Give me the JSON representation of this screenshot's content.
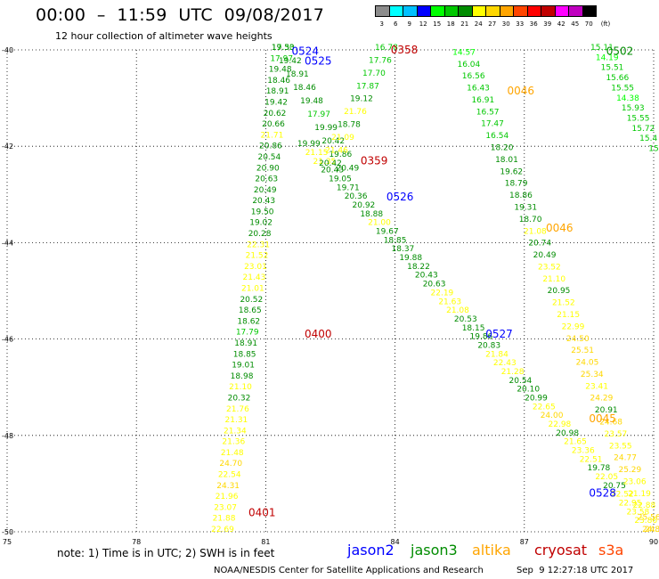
{
  "title": "00:00  –  11:59  UTC  09/08/2017",
  "subtitle": "12 hour collection of altimeter wave heights",
  "scale": {
    "unit": "(ft)",
    "bins": [
      {
        "label": "3",
        "color": "#8c8c8c"
      },
      {
        "label": "6",
        "color": "#00ffff"
      },
      {
        "label": "9",
        "color": "#00c0ff"
      },
      {
        "label": "12",
        "color": "#0000ff"
      },
      {
        "label": "15",
        "color": "#00ff00"
      },
      {
        "label": "18",
        "color": "#00c800"
      },
      {
        "label": "21",
        "color": "#008c00"
      },
      {
        "label": "24",
        "color": "#ffff00"
      },
      {
        "label": "27",
        "color": "#ffd700"
      },
      {
        "label": "30",
        "color": "#ffa500"
      },
      {
        "label": "33",
        "color": "#ff4500"
      },
      {
        "label": "36",
        "color": "#ff0000"
      },
      {
        "label": "39",
        "color": "#c00000"
      },
      {
        "label": "42",
        "color": "#ff00ff"
      },
      {
        "label": "45",
        "color": "#c000c0"
      },
      {
        "label": "70",
        "color": "#000000"
      }
    ]
  },
  "axes": {
    "x_ticks": [
      "75",
      "78",
      "81",
      "84",
      "87",
      "90"
    ],
    "y_ticks": [
      "-40",
      "-42",
      "-44",
      "-46",
      "-48",
      "-50"
    ]
  },
  "note": "note: 1) Time is in UTC; 2) SWH is in feet",
  "satellites": [
    {
      "name": "jason2",
      "color": "#0000ff"
    },
    {
      "name": "jason3",
      "color": "#008c00"
    },
    {
      "name": "altika",
      "color": "#ffa500"
    },
    {
      "name": "cryosat",
      "color": "#c00000"
    },
    {
      "name": "s3a",
      "color": "#ff4500"
    }
  ],
  "footer": "NOAA/NESDIS Center for Satellite Applications and Research",
  "timestamp": "Sep  9 12:27:18 UTC 2017",
  "passes": [
    {
      "label": "0524",
      "sat": "jason2",
      "lon": 81.6,
      "lat": -40.03
    },
    {
      "label": "0525",
      "sat": "jason2",
      "lon": 81.9,
      "lat": -40.23
    },
    {
      "label": "0358",
      "sat": "cryosat",
      "lon": 83.9,
      "lat": -40.0
    },
    {
      "label": "0046",
      "sat": "altika",
      "lon": 86.6,
      "lat": -40.85
    },
    {
      "label": "0502",
      "sat": "jason3",
      "lon": 88.9,
      "lat": -40.03
    },
    {
      "label": "0359",
      "sat": "cryosat",
      "lon": 83.2,
      "lat": -42.3
    },
    {
      "label": "0526",
      "sat": "jason2",
      "lon": 83.8,
      "lat": -43.05
    },
    {
      "label": "0046",
      "sat": "altika",
      "lon": 87.5,
      "lat": -43.7
    },
    {
      "label": "0400",
      "sat": "cryosat",
      "lon": 81.9,
      "lat": -45.9
    },
    {
      "label": "0527",
      "sat": "jason2",
      "lon": 86.1,
      "lat": -45.9
    },
    {
      "label": "0045",
      "sat": "altika",
      "lon": 88.5,
      "lat": -47.65
    },
    {
      "label": "0528",
      "sat": "jason2",
      "lon": 88.5,
      "lat": -49.2
    },
    {
      "label": "0401",
      "sat": "cryosat",
      "lon": 80.6,
      "lat": -49.6
    }
  ],
  "tracks": [
    {
      "name": "jason3-asc-west",
      "start": [
        80.0,
        -50.0
      ],
      "end": [
        81.4,
        -40.0
      ],
      "values": [
        "22.69",
        "21.88",
        "23.07",
        "21.96",
        "24.31",
        "22.54",
        "24.70",
        "21.48",
        "21.36",
        "21.34",
        "21.31",
        "21.76",
        "20.32",
        "21.10",
        "18.98",
        "19.01",
        "18.85",
        "18.91",
        "17.79",
        "18.62",
        "18.65",
        "20.52",
        "21.01",
        "21.43",
        "23.01",
        "21.52",
        "22.31",
        "20.28",
        "19.02",
        "19.50",
        "20.43",
        "20.49",
        "20.63",
        "20.90",
        "20.54",
        "20.86",
        "21.71",
        "20.66",
        "20.62",
        "19.42",
        "18.91",
        "18.46",
        "19.48",
        "17.97",
        "17.30"
      ]
    },
    {
      "name": "jason3-asc-east",
      "start": [
        81.4,
        -40.0
      ],
      "end": [
        82.9,
        -42.5
      ],
      "values": [
        "19.53",
        "19.42",
        "18.91",
        "18.46",
        "19.48",
        "17.97",
        "19.99",
        "20.42",
        "19.86",
        "20.49"
      ]
    },
    {
      "name": "jason3-desc-a",
      "start": [
        82.0,
        -42.0
      ],
      "end": [
        90.0,
        -50.0
      ],
      "values": [
        "19.99",
        "21.15",
        "21.35",
        "20.43",
        "19.05",
        "19.71",
        "20.36",
        "20.92",
        "18.88",
        "21.00",
        "19.67",
        "18.85",
        "18.37",
        "19.88",
        "18.22",
        "20.43",
        "20.63",
        "22.19",
        "21.63",
        "21.08",
        "20.53",
        "18.15",
        "19.86",
        "20.83",
        "21.84",
        "22.43",
        "21.28",
        "20.54",
        "20.10",
        "20.99",
        "22.65",
        "24.00",
        "22.98",
        "20.98",
        "21.65",
        "23.36",
        "22.51",
        "19.78",
        "22.05",
        "20.75",
        "22.52",
        "22.95",
        "23.58",
        "23.86",
        "24.3"
      ]
    },
    {
      "name": "jason3-desc-b",
      "start": [
        83.8,
        -40.0
      ],
      "end": [
        82.5,
        -42.4
      ],
      "values": [
        "16.78",
        "17.76",
        "17.70",
        "17.87",
        "19.12",
        "21.76",
        "18.78",
        "21.09",
        "21.46",
        "20.42"
      ]
    },
    {
      "name": "jason3-s-track",
      "start": [
        85.6,
        -40.1
      ],
      "end": [
        90.0,
        -50.0
      ],
      "values": [
        "14.57",
        "16.04",
        "16.56",
        "16.43",
        "16.91",
        "16.57",
        "17.47",
        "16.54",
        "18.20",
        "18.01",
        "19.62",
        "18.79",
        "18.86",
        "19.31",
        "18.70",
        "21.08",
        "20.74",
        "20.49",
        "23.52",
        "21.10",
        "20.95",
        "21.52",
        "21.15",
        "22.99",
        "24.50",
        "25.51",
        "24.05",
        "25.34",
        "23.41",
        "24.29",
        "20.91",
        "24.68",
        "23.57",
        "23.55",
        "24.77",
        "25.29",
        "23.06",
        "21.19",
        "22.88",
        "25.56",
        "24.87"
      ]
    },
    {
      "name": "jason3-far-east",
      "start": [
        88.8,
        -40.0
      ],
      "end": [
        90.0,
        -42.1
      ],
      "values": [
        "15.11",
        "14.19",
        "15.51",
        "15.66",
        "15.55",
        "14.38",
        "15.93",
        "15.55",
        "15.72",
        "15.4",
        "15"
      ]
    }
  ]
}
